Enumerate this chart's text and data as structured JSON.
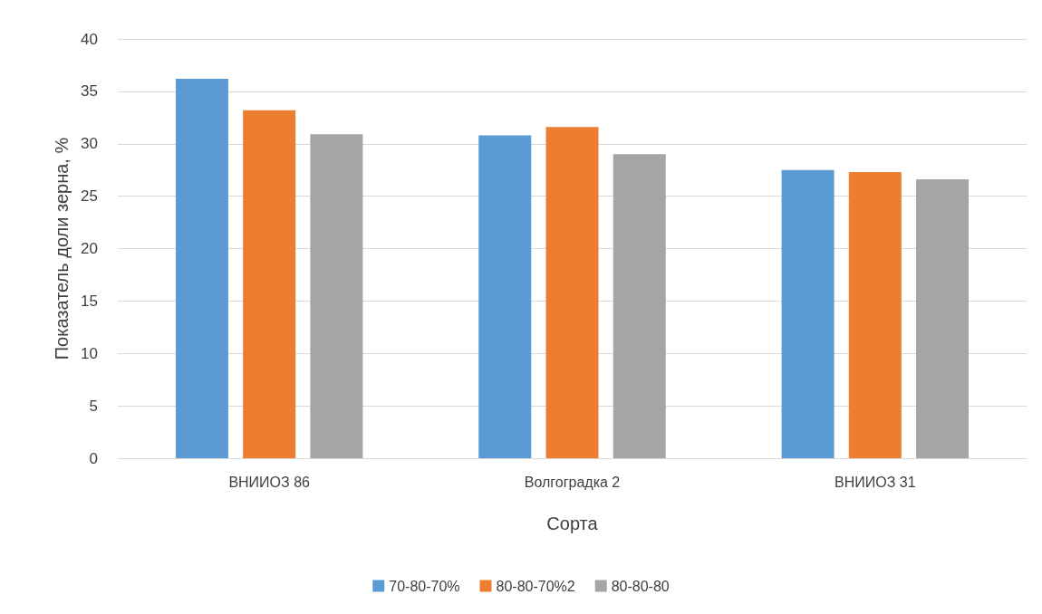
{
  "chart_data": {
    "type": "bar",
    "xlabel": "Сорта",
    "ylabel": "Показатель доли зерна, %",
    "categories": [
      "ВНИИОЗ 86",
      "Волгоградка 2",
      "ВНИИОЗ 31"
    ],
    "series": [
      {
        "name": "70-80-70%",
        "color": "#5b9bd5",
        "values": [
          36.2,
          30.8,
          27.5
        ]
      },
      {
        "name": "80-80-70%2",
        "color": "#ed7d31",
        "values": [
          33.2,
          31.6,
          27.3
        ]
      },
      {
        "name": "80-80-80",
        "color": "#a5a5a5",
        "values": [
          30.9,
          29.0,
          26.6
        ]
      }
    ],
    "ylim": [
      0,
      40
    ],
    "yticks": [
      0,
      5,
      10,
      15,
      20,
      25,
      30,
      35,
      40
    ],
    "grid": "y",
    "legend": "bottom"
  }
}
